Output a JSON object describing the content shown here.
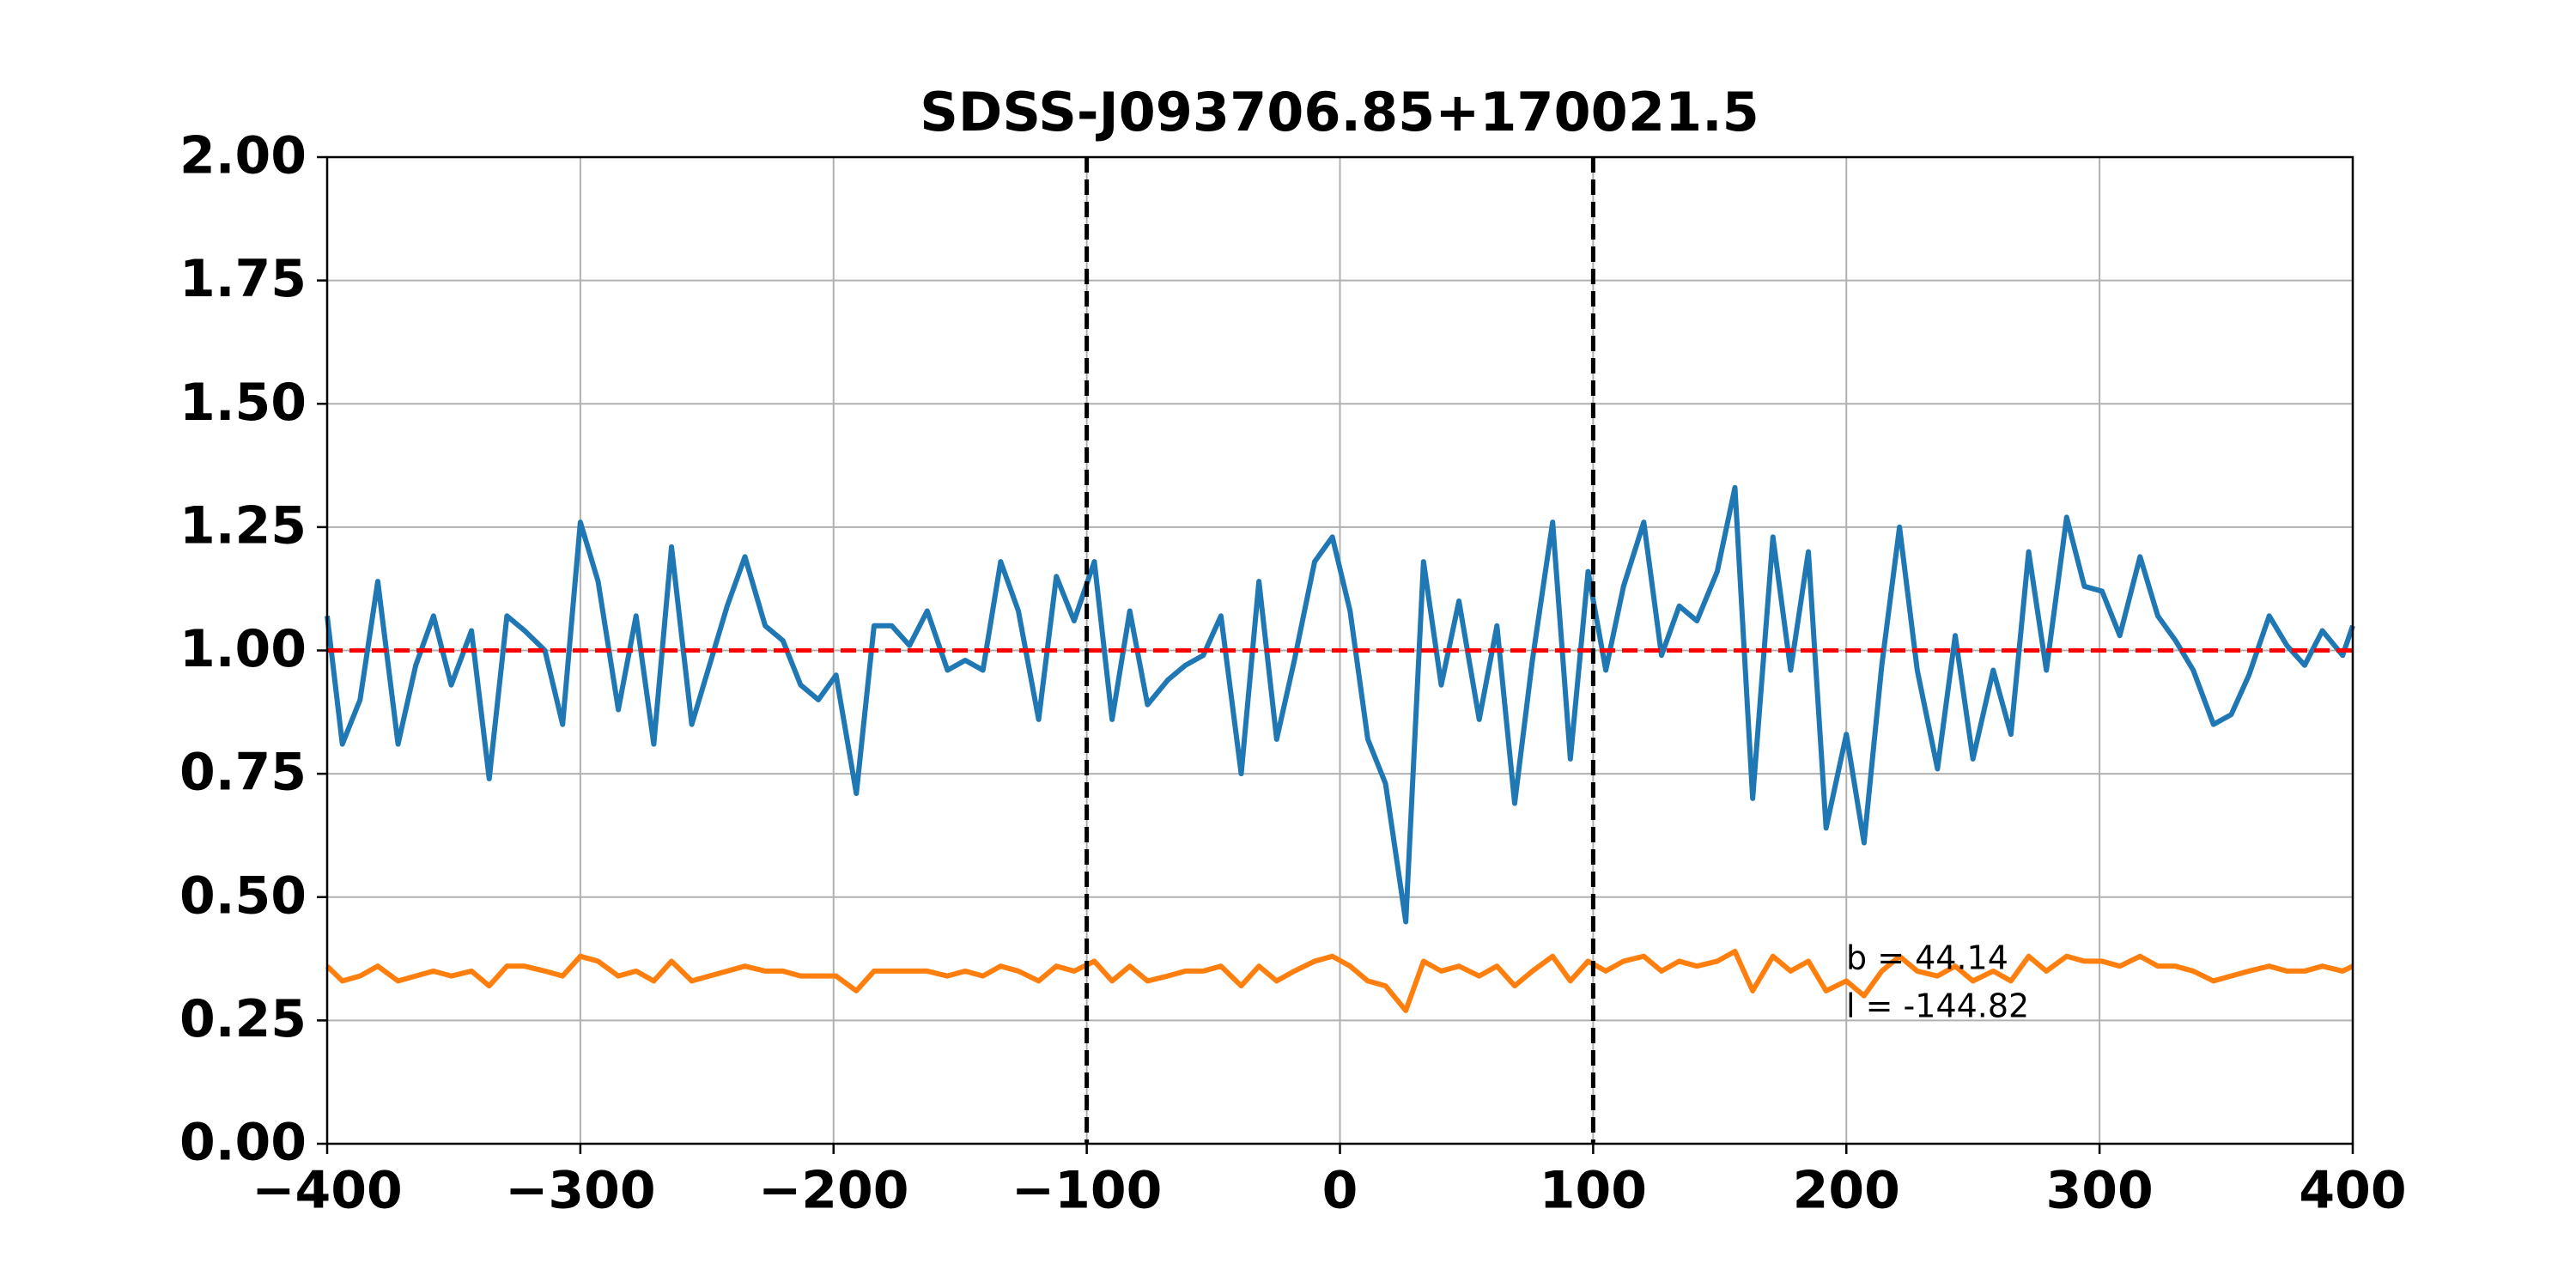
{
  "chart_data": {
    "type": "line",
    "title": "SDSS-J093706.85+170021.5",
    "x": [
      -400,
      -394,
      -387,
      -380,
      -372,
      -365,
      -358,
      -351,
      -343,
      -336,
      -329,
      -322,
      -314,
      -307,
      -300,
      -293,
      -285,
      -278,
      -271,
      -264,
      -256,
      -249,
      -242,
      -235,
      -227,
      -220,
      -213,
      -206,
      -199,
      -191,
      -184,
      -177,
      -170,
      -163,
      -155,
      -148,
      -141,
      -134,
      -127,
      -119,
      -112,
      -105,
      -97,
      -90,
      -83,
      -76,
      -68,
      -61,
      -54,
      -47,
      -39,
      -32,
      -25,
      -18,
      -10,
      -3,
      4,
      11,
      18,
      26,
      33,
      40,
      47,
      55,
      62,
      69,
      76,
      84,
      91,
      98,
      105,
      112,
      120,
      127,
      134,
      141,
      149,
      156,
      163,
      171,
      178,
      185,
      192,
      200,
      207,
      214,
      221,
      228,
      236,
      243,
      250,
      258,
      265,
      272,
      279,
      287,
      294,
      301,
      308,
      316,
      323,
      330,
      337,
      345,
      352,
      359,
      367,
      374,
      381,
      388,
      396,
      400
    ],
    "series": [
      {
        "color": "#1f77b4",
        "values": [
          1.07,
          0.81,
          0.9,
          1.14,
          0.81,
          0.97,
          1.07,
          0.93,
          1.04,
          0.74,
          1.07,
          1.04,
          1.0,
          0.85,
          1.26,
          1.14,
          0.88,
          1.07,
          0.81,
          1.21,
          0.85,
          0.97,
          1.09,
          1.19,
          1.05,
          1.02,
          0.93,
          0.9,
          0.95,
          0.71,
          1.05,
          1.05,
          1.01,
          1.08,
          0.96,
          0.98,
          0.96,
          1.18,
          1.08,
          0.86,
          1.15,
          1.06,
          1.18,
          0.86,
          1.08,
          0.89,
          0.94,
          0.97,
          0.99,
          1.07,
          0.75,
          1.14,
          0.82,
          0.98,
          1.18,
          1.23,
          1.08,
          0.82,
          0.73,
          0.45,
          1.18,
          0.93,
          1.1,
          0.86,
          1.05,
          0.69,
          0.98,
          1.26,
          0.78,
          1.16,
          0.96,
          1.13,
          1.26,
          0.99,
          1.09,
          1.06,
          1.16,
          1.33,
          0.7,
          1.23,
          0.96,
          1.2,
          0.64,
          0.83,
          0.61,
          0.97,
          1.25,
          0.96,
          0.76,
          1.03,
          0.78,
          0.96,
          0.83,
          1.2,
          0.96,
          1.27,
          1.13,
          1.12,
          1.03,
          1.19,
          1.07,
          1.02,
          0.96,
          0.85,
          0.87,
          0.95,
          1.07,
          1.01,
          0.97,
          1.04,
          0.99,
          1.05
        ]
      },
      {
        "color": "#ff7f0e",
        "values": [
          0.36,
          0.33,
          0.34,
          0.36,
          0.33,
          0.34,
          0.35,
          0.34,
          0.35,
          0.32,
          0.36,
          0.36,
          0.35,
          0.34,
          0.38,
          0.37,
          0.34,
          0.35,
          0.33,
          0.37,
          0.33,
          0.34,
          0.35,
          0.36,
          0.35,
          0.35,
          0.34,
          0.34,
          0.34,
          0.31,
          0.35,
          0.35,
          0.35,
          0.35,
          0.34,
          0.35,
          0.34,
          0.36,
          0.35,
          0.33,
          0.36,
          0.35,
          0.37,
          0.33,
          0.36,
          0.33,
          0.34,
          0.35,
          0.35,
          0.36,
          0.32,
          0.36,
          0.33,
          0.35,
          0.37,
          0.38,
          0.36,
          0.33,
          0.32,
          0.27,
          0.37,
          0.35,
          0.36,
          0.34,
          0.36,
          0.32,
          0.35,
          0.38,
          0.33,
          0.37,
          0.35,
          0.37,
          0.38,
          0.35,
          0.37,
          0.36,
          0.37,
          0.39,
          0.31,
          0.38,
          0.35,
          0.37,
          0.31,
          0.33,
          0.3,
          0.35,
          0.38,
          0.35,
          0.34,
          0.36,
          0.33,
          0.35,
          0.33,
          0.38,
          0.35,
          0.38,
          0.37,
          0.37,
          0.36,
          0.38,
          0.36,
          0.36,
          0.35,
          0.33,
          0.34,
          0.35,
          0.36,
          0.35,
          0.35,
          0.36,
          0.35,
          0.36
        ]
      }
    ],
    "xlim": [
      -400,
      400
    ],
    "ylim": [
      0,
      2
    ],
    "xticks": [
      {
        "value": -400,
        "label": "−400"
      },
      {
        "value": -300,
        "label": "−300"
      },
      {
        "value": -200,
        "label": "−200"
      },
      {
        "value": -100,
        "label": "−100"
      },
      0,
      100,
      200,
      300,
      400
    ],
    "yticks": [
      {
        "value": 0,
        "label": "0.00"
      },
      {
        "value": 0.25,
        "label": "0.25"
      },
      {
        "value": 0.5,
        "label": "0.50"
      },
      {
        "value": 0.75,
        "label": "0.75"
      },
      {
        "value": 1,
        "label": "1.00"
      },
      {
        "value": 1.25,
        "label": "1.25"
      },
      {
        "value": 1.5,
        "label": "1.50"
      },
      {
        "value": 1.75,
        "label": "1.75"
      },
      {
        "value": 2,
        "label": "2.00"
      }
    ],
    "grid": true,
    "vlines": [
      -100,
      100
    ],
    "vline_color": "#000000",
    "hline": 1,
    "hline_color": "#ff0000",
    "annotations": [
      "b = 44.14",
      "l = -144.82"
    ]
  }
}
